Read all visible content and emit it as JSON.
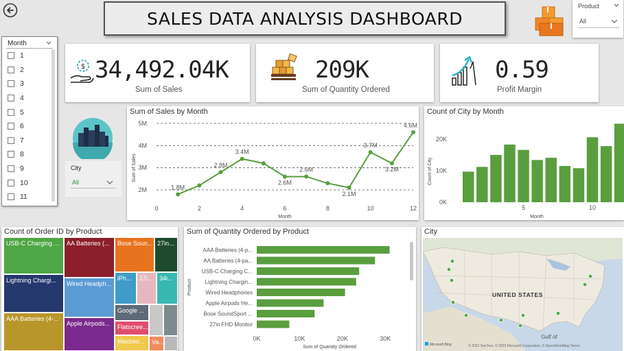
{
  "header": {
    "title": "SALES DATA ANALYSIS DASHBOARD"
  },
  "product_slicer": {
    "label": "Product",
    "value": "All"
  },
  "city_slicer": {
    "label": "City",
    "value": "All"
  },
  "month_slicer": {
    "label": "Month",
    "items": [
      "1",
      "2",
      "3",
      "4",
      "5",
      "6",
      "7",
      "8",
      "9",
      "10",
      "11"
    ]
  },
  "kpis": [
    {
      "value": "34,492.04K",
      "label": "Sum of Sales",
      "icon": "money-hand-icon"
    },
    {
      "value": "209K",
      "label": "Sum of Quantity Ordered",
      "icon": "boxes-cart-icon"
    },
    {
      "value": "0.59",
      "label": "Profit Margin",
      "icon": "growth-chart-icon"
    }
  ],
  "sales_chart": {
    "title": "Sum of Sales by Month",
    "xlabel": "Month",
    "ylabel": "Sum of Sales",
    "yticks": [
      "2M",
      "3M",
      "4M",
      "5M"
    ],
    "xticks": [
      "0",
      "2",
      "4",
      "6",
      "8",
      "10",
      "12"
    ],
    "labels": [
      "1.8M",
      "2.8M",
      "3.4M",
      "2.6M",
      "2.6M",
      "2.1M",
      "3.7M",
      "3.2M",
      "4.6M"
    ]
  },
  "city_chart": {
    "title": "Count of City by Month",
    "xlabel": "Month",
    "ylabel": "Count of City",
    "yticks": [
      "0K",
      "10K",
      "20K"
    ],
    "xticks": [
      "5",
      "10"
    ]
  },
  "treemap": {
    "title": "Count of Order ID by Product",
    "cells": [
      "USB-C Charging ...",
      "Lightning Chargi...",
      "AAA Batteries (4-...",
      "AA Batteries (...",
      "Wired Headph...",
      "Apple Airpods...",
      "Bose Soun...",
      "27in...",
      "iPh...",
      "27i...",
      "34i...",
      "Google ...",
      "Flatscree...",
      "Macboo...",
      "Va..."
    ]
  },
  "qty_chart": {
    "title": "Sum of Quantity Ordered by Product",
    "xlabel": "Sum of Quantity Ordered",
    "ylabel": "Product",
    "xticks": [
      "0K",
      "10K",
      "20K",
      "30K"
    ],
    "categories": [
      "AAA Batteries (4-p...",
      "AA Batteries (4-pa...",
      "USB-C Charging C...",
      "Lightning Chargin...",
      "Wired Headphones",
      "Apple Airpods He...",
      "Bose SoundSport ...",
      "27in FHD Monitor"
    ]
  },
  "map": {
    "title": "City",
    "country_label": "UNITED STATES",
    "gulf_label": "Gulf of",
    "attribution": "© 2023 TomTom, © 2023 Microsoft Corporation, © OpenStreetMap  Terms",
    "logo_text": "Microsoft Bing"
  },
  "chart_data": [
    {
      "type": "line",
      "title": "Sum of Sales by Month",
      "xlabel": "Month",
      "ylabel": "Sum of Sales",
      "x": [
        1,
        2,
        3,
        4,
        5,
        6,
        7,
        8,
        9,
        10,
        11,
        12
      ],
      "series": [
        {
          "values": [
            1.8,
            2.2,
            2.8,
            3.4,
            3.2,
            2.6,
            2.6,
            2.3,
            2.1,
            3.7,
            3.2,
            4.6
          ]
        }
      ],
      "units": "M",
      "ylim": [
        1.8,
        5
      ],
      "xlim": [
        0,
        12
      ],
      "grid": true,
      "color": "#5a9e3e"
    },
    {
      "type": "bar",
      "title": "Count of City by Month",
      "xlabel": "Month",
      "ylabel": "Count of City",
      "categories": [
        1,
        2,
        3,
        4,
        5,
        6,
        7,
        8,
        9,
        10,
        11,
        12
      ],
      "values": [
        9.7,
        11.2,
        15.0,
        18.3,
        16.6,
        13.4,
        14.1,
        11.5,
        10.8,
        20.6,
        17.8,
        24.9
      ],
      "units": "K",
      "ylim": [
        0,
        25
      ],
      "color": "#5a9e3e"
    },
    {
      "type": "bar",
      "orientation": "horizontal",
      "title": "Sum of Quantity Ordered by Product",
      "xlabel": "Sum of Quantity Ordered",
      "ylabel": "Product",
      "categories": [
        "AAA Batteries (4-p...",
        "AA Batteries (4-pa...",
        "USB-C Charging C...",
        "Lightning Chargin...",
        "Wired Headphones",
        "Apple Airpods He...",
        "Bose SoundSport ...",
        "27in FHD Monitor"
      ],
      "values": [
        31000,
        27600,
        23900,
        23200,
        20600,
        15600,
        13500,
        7600
      ],
      "xlim": [
        0,
        33000
      ],
      "color": "#5a9e3e"
    }
  ]
}
